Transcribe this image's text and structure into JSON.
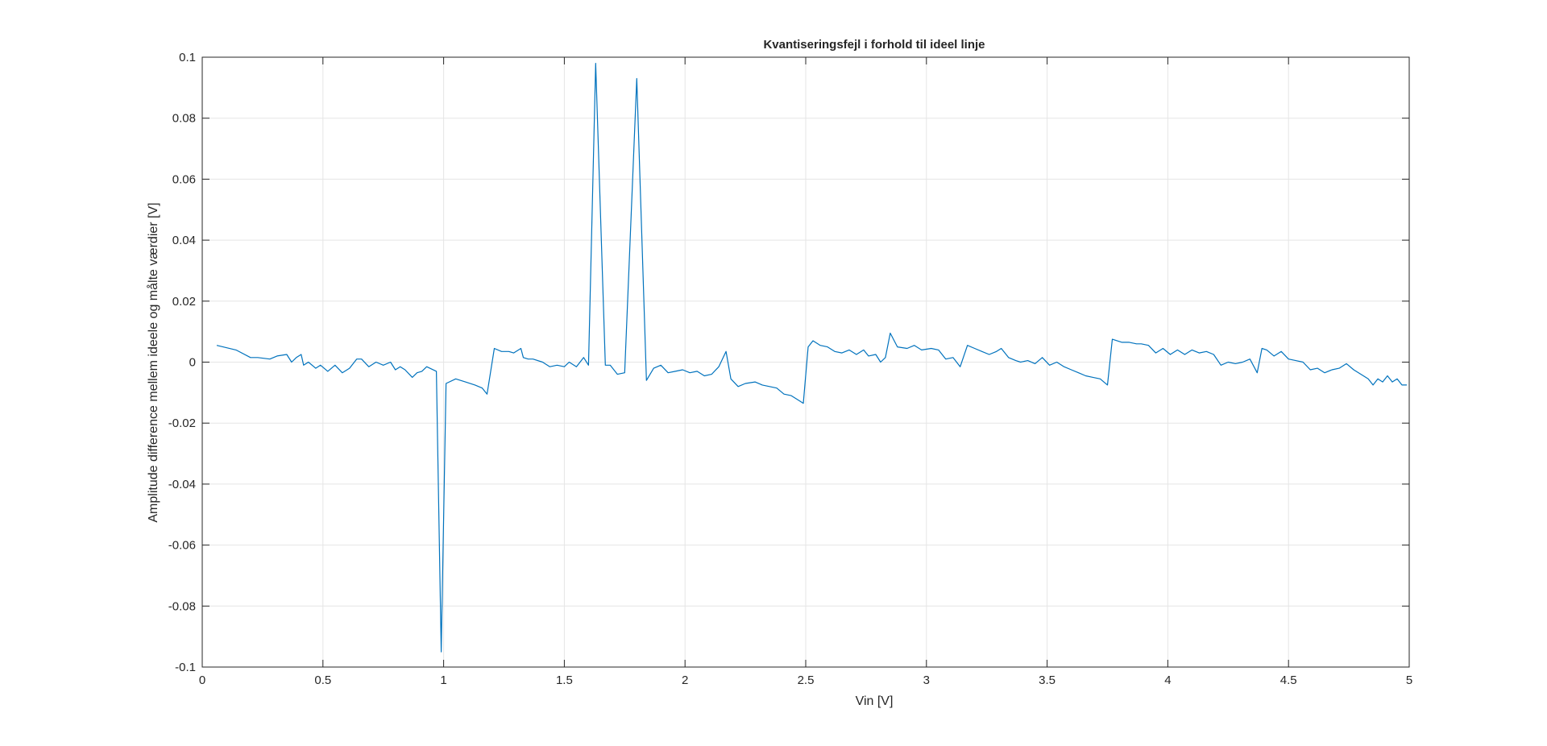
{
  "chart_data": {
    "type": "line",
    "title": "Kvantiseringsfejl i forhold til ideel linje",
    "xlabel": "Vin [V]",
    "ylabel": "Amplitude difference mellem ideele og målte værdier [V]",
    "xlim": [
      0,
      5
    ],
    "ylim": [
      -0.1,
      0.1
    ],
    "grid": true,
    "x_ticks": [
      "0",
      "0.5",
      "1",
      "1.5",
      "2",
      "2.5",
      "3",
      "3.5",
      "4",
      "4.5",
      "5"
    ],
    "x_tick_values": [
      0,
      0.5,
      1,
      1.5,
      2,
      2.5,
      3,
      3.5,
      4,
      4.5,
      5
    ],
    "y_ticks": [
      "0.1",
      "0.08",
      "0.06",
      "0.04",
      "0.02",
      "0",
      "-0.02",
      "-0.04",
      "-0.06",
      "-0.08",
      "-0.1"
    ],
    "y_tick_values": [
      0.1,
      0.08,
      0.06,
      0.04,
      0.02,
      0,
      -0.02,
      -0.04,
      -0.06,
      -0.08,
      -0.1
    ],
    "series": [
      {
        "color": "#0072BD",
        "x": [
          0.06,
          0.14,
          0.2,
          0.23,
          0.28,
          0.31,
          0.35,
          0.37,
          0.39,
          0.41,
          0.42,
          0.44,
          0.47,
          0.49,
          0.52,
          0.55,
          0.58,
          0.61,
          0.64,
          0.66,
          0.69,
          0.72,
          0.75,
          0.78,
          0.8,
          0.82,
          0.84,
          0.87,
          0.89,
          0.91,
          0.93,
          0.97,
          0.99,
          1.01,
          1.05,
          1.09,
          1.13,
          1.16,
          1.18,
          1.21,
          1.24,
          1.27,
          1.29,
          1.32,
          1.33,
          1.35,
          1.37,
          1.41,
          1.44,
          1.47,
          1.5,
          1.52,
          1.55,
          1.58,
          1.6,
          1.63,
          1.67,
          1.69,
          1.72,
          1.75,
          1.8,
          1.84,
          1.87,
          1.9,
          1.93,
          1.96,
          1.99,
          2.02,
          2.05,
          2.08,
          2.11,
          2.14,
          2.17,
          2.19,
          2.22,
          2.25,
          2.29,
          2.32,
          2.35,
          2.38,
          2.41,
          2.44,
          2.47,
          2.49,
          2.51,
          2.53,
          2.56,
          2.59,
          2.62,
          2.65,
          2.68,
          2.71,
          2.74,
          2.76,
          2.79,
          2.81,
          2.83,
          2.85,
          2.88,
          2.92,
          2.95,
          2.98,
          3.02,
          3.05,
          3.08,
          3.11,
          3.14,
          3.17,
          3.2,
          3.23,
          3.26,
          3.29,
          3.31,
          3.34,
          3.37,
          3.39,
          3.42,
          3.45,
          3.48,
          3.51,
          3.54,
          3.57,
          3.6,
          3.63,
          3.66,
          3.69,
          3.72,
          3.75,
          3.77,
          3.81,
          3.84,
          3.87,
          3.89,
          3.92,
          3.95,
          3.98,
          4.01,
          4.04,
          4.07,
          4.1,
          4.13,
          4.16,
          4.19,
          4.22,
          4.25,
          4.28,
          4.31,
          4.34,
          4.37,
          4.39,
          4.41,
          4.44,
          4.47,
          4.5,
          4.53,
          4.56,
          4.59,
          4.62,
          4.65,
          4.68,
          4.71,
          4.74,
          4.77,
          4.8,
          4.83,
          4.85,
          4.87,
          4.89,
          4.91,
          4.93,
          4.95,
          4.97,
          4.99
        ],
        "y": [
          0.0055,
          0.004,
          0.0015,
          0.0015,
          0.001,
          0.002,
          0.0025,
          0.0,
          0.0015,
          0.0025,
          -0.001,
          0.0,
          -0.002,
          -0.001,
          -0.003,
          -0.001,
          -0.0035,
          -0.002,
          0.001,
          0.001,
          -0.0015,
          0.0,
          -0.001,
          0.0,
          -0.0025,
          -0.0015,
          -0.0025,
          -0.005,
          -0.0035,
          -0.003,
          -0.0015,
          -0.003,
          -0.095,
          -0.007,
          -0.0055,
          -0.0065,
          -0.0075,
          -0.0085,
          -0.0105,
          0.0045,
          0.0035,
          0.0035,
          0.003,
          0.0045,
          0.0015,
          0.001,
          0.001,
          0.0,
          -0.0015,
          -0.001,
          -0.0015,
          0.0,
          -0.0015,
          0.0015,
          -0.001,
          0.098,
          -0.001,
          -0.001,
          -0.004,
          -0.0035,
          0.093,
          -0.006,
          -0.002,
          -0.001,
          -0.0035,
          -0.003,
          -0.0025,
          -0.0035,
          -0.003,
          -0.0045,
          -0.004,
          -0.0015,
          0.0035,
          -0.0055,
          -0.008,
          -0.007,
          -0.0065,
          -0.0075,
          -0.008,
          -0.0085,
          -0.0105,
          -0.011,
          -0.0125,
          -0.0135,
          0.005,
          0.007,
          0.0055,
          0.005,
          0.0035,
          0.003,
          0.004,
          0.0025,
          0.004,
          0.002,
          0.0025,
          0.0,
          0.0015,
          0.0095,
          0.005,
          0.0045,
          0.0055,
          0.004,
          0.0045,
          0.004,
          0.001,
          0.0015,
          -0.0015,
          0.0055,
          0.0045,
          0.0035,
          0.0025,
          0.0035,
          0.0045,
          0.0015,
          0.0005,
          0.0,
          0.0005,
          -0.0005,
          0.0015,
          -0.001,
          0.0,
          -0.0015,
          -0.0025,
          -0.0035,
          -0.0045,
          -0.005,
          -0.0055,
          -0.0075,
          0.0075,
          0.0065,
          0.0065,
          0.006,
          0.006,
          0.0055,
          0.003,
          0.0045,
          0.0025,
          0.004,
          0.0025,
          0.004,
          0.003,
          0.0035,
          0.0025,
          -0.001,
          0.0,
          -0.0005,
          0.0,
          0.001,
          -0.0035,
          0.0045,
          0.004,
          0.002,
          0.0035,
          0.001,
          0.0005,
          0.0,
          -0.0025,
          -0.002,
          -0.0035,
          -0.0025,
          -0.002,
          -0.0005,
          -0.0025,
          -0.004,
          -0.0055,
          -0.0075,
          -0.0055,
          -0.0065,
          -0.0045,
          -0.0065,
          -0.0055,
          -0.0075,
          -0.0075
        ]
      }
    ]
  }
}
